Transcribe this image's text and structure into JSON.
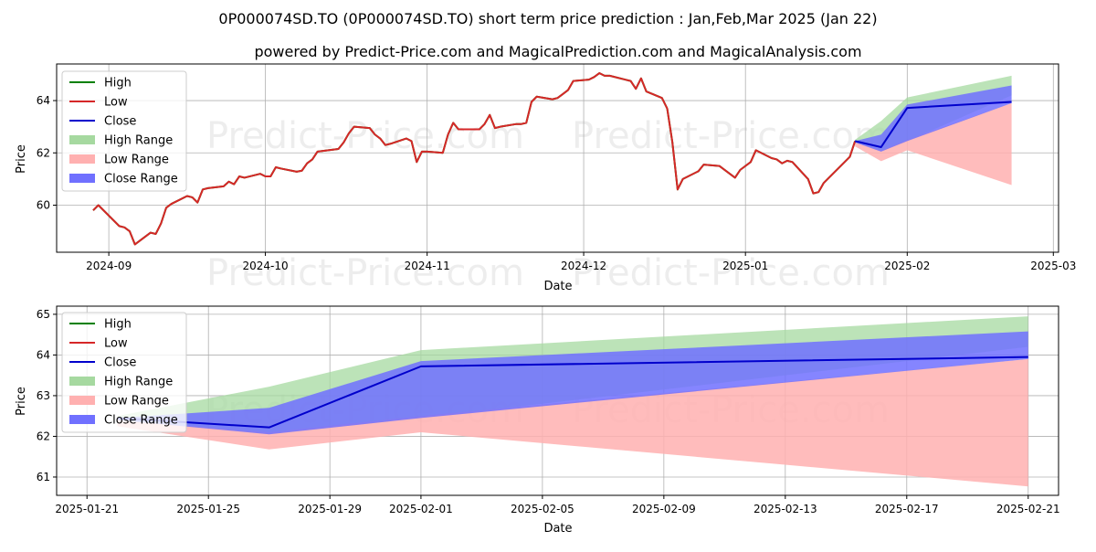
{
  "title": "0P000074SD.TO (0P000074SD.TO) short term price prediction : Jan,Feb,Mar 2025 (Jan 22)",
  "subtitle": "powered by Predict-Price.com and MagicalPrediction.com and MagicalAnalysis.com",
  "watermark": "Predict-Price.com",
  "colors": {
    "high": "#008000",
    "low": "#d62728",
    "close": "#0000cc",
    "high_range": "#a6d9a0",
    "low_range": "#ffb0b0",
    "close_range": "#7070ff"
  },
  "legend": [
    "High",
    "Low",
    "Close",
    "High Range",
    "Low Range",
    "Close Range"
  ],
  "chart_data": [
    {
      "type": "line",
      "xlabel": "Date",
      "ylabel": "Price",
      "xlim": [
        "2024-08-22",
        "2025-03-02"
      ],
      "ylim": [
        58.2,
        65.4
      ],
      "yticks": [
        60,
        62,
        64
      ],
      "xticks": [
        "2024-09-01",
        "2024-10-01",
        "2024-11-01",
        "2024-12-01",
        "2025-01-01",
        "2025-02-01",
        "2025-03-01"
      ],
      "xtick_labels": [
        "2024-09",
        "2024-10",
        "2024-11",
        "2024-12",
        "2025-01",
        "2025-02",
        "2025-03"
      ],
      "grid": true,
      "legend_position": "upper-left",
      "history": {
        "dates": [
          "2024-08-29",
          "2024-08-30",
          "2024-09-03",
          "2024-09-04",
          "2024-09-05",
          "2024-09-06",
          "2024-09-09",
          "2024-09-10",
          "2024-09-11",
          "2024-09-12",
          "2024-09-13",
          "2024-09-16",
          "2024-09-17",
          "2024-09-18",
          "2024-09-19",
          "2024-09-20",
          "2024-09-23",
          "2024-09-24",
          "2024-09-25",
          "2024-09-26",
          "2024-09-27",
          "2024-09-30",
          "2024-10-01",
          "2024-10-02",
          "2024-10-03",
          "2024-10-04",
          "2024-10-07",
          "2024-10-08",
          "2024-10-09",
          "2024-10-10",
          "2024-10-11",
          "2024-10-15",
          "2024-10-16",
          "2024-10-17",
          "2024-10-18",
          "2024-10-21",
          "2024-10-22",
          "2024-10-23",
          "2024-10-24",
          "2024-10-25",
          "2024-10-28",
          "2024-10-29",
          "2024-10-30",
          "2024-10-31",
          "2024-11-01",
          "2024-11-04",
          "2024-11-05",
          "2024-11-06",
          "2024-11-07",
          "2024-11-08",
          "2024-11-11",
          "2024-11-12",
          "2024-11-13",
          "2024-11-14",
          "2024-11-15",
          "2024-11-18",
          "2024-11-19",
          "2024-11-20",
          "2024-11-21",
          "2024-11-22",
          "2024-11-25",
          "2024-11-26",
          "2024-11-27",
          "2024-11-28",
          "2024-11-29",
          "2024-12-02",
          "2024-12-03",
          "2024-12-04",
          "2024-12-05",
          "2024-12-06",
          "2024-12-09",
          "2024-12-10",
          "2024-12-11",
          "2024-12-12",
          "2024-12-13",
          "2024-12-16",
          "2024-12-17",
          "2024-12-18",
          "2024-12-19",
          "2024-12-20",
          "2024-12-23",
          "2024-12-24",
          "2024-12-27",
          "2024-12-30",
          "2024-12-31",
          "2025-01-02",
          "2025-01-03",
          "2025-01-06",
          "2025-01-07",
          "2025-01-08",
          "2025-01-09",
          "2025-01-10",
          "2025-01-13",
          "2025-01-14",
          "2025-01-15",
          "2025-01-16",
          "2025-01-17",
          "2025-01-20",
          "2025-01-21",
          "2025-01-22"
        ],
        "low": [
          59.8,
          60.0,
          59.2,
          59.15,
          59.0,
          58.5,
          58.95,
          58.9,
          59.3,
          59.9,
          60.05,
          60.35,
          60.3,
          60.1,
          60.6,
          60.65,
          60.72,
          60.9,
          60.8,
          61.1,
          61.05,
          61.2,
          61.1,
          61.1,
          61.45,
          61.4,
          61.28,
          61.32,
          61.6,
          61.75,
          62.05,
          62.15,
          62.4,
          62.75,
          63.0,
          62.95,
          62.7,
          62.55,
          62.3,
          62.35,
          62.55,
          62.45,
          61.65,
          62.05,
          62.05,
          62.0,
          62.7,
          63.15,
          62.9,
          62.9,
          62.9,
          63.1,
          63.45,
          62.95,
          63.0,
          63.1,
          63.1,
          63.15,
          63.95,
          64.15,
          64.05,
          64.1,
          64.25,
          64.4,
          64.75,
          64.8,
          64.9,
          65.05,
          64.95,
          64.95,
          64.8,
          64.75,
          64.45,
          64.85,
          64.35,
          64.1,
          63.7,
          62.4,
          60.6,
          61.0,
          61.3,
          61.55,
          61.5,
          61.05,
          61.35,
          61.65,
          62.1,
          61.8,
          61.75,
          61.6,
          61.7,
          61.65,
          61.0,
          60.45,
          60.5,
          60.85,
          61.05,
          61.65,
          61.85,
          62.45
        ]
      }
    },
    {
      "type": "area",
      "xlabel": "Date",
      "ylabel": "Price",
      "xlim": [
        "2025-01-20",
        "2025-02-22"
      ],
      "ylim": [
        60.55,
        65.2
      ],
      "yticks": [
        61,
        62,
        63,
        64,
        65
      ],
      "xticks": [
        "2025-01-21",
        "2025-01-25",
        "2025-01-29",
        "2025-02-01",
        "2025-02-05",
        "2025-02-09",
        "2025-02-13",
        "2025-02-17",
        "2025-02-21"
      ],
      "grid": true,
      "legend_position": "upper-left",
      "forecast": {
        "dates": [
          "2025-01-22",
          "2025-01-27",
          "2025-02-01",
          "2025-02-21"
        ],
        "close": [
          62.45,
          62.22,
          63.72,
          63.95
        ],
        "high_range": {
          "upper": [
            62.5,
            63.22,
            64.12,
            64.95
          ],
          "lower": [
            62.4,
            62.05,
            62.45,
            64.2
          ]
        },
        "low_range": {
          "upper": [
            62.4,
            62.1,
            62.5,
            63.9
          ],
          "lower": [
            62.25,
            61.68,
            62.1,
            60.77
          ]
        },
        "close_range": {
          "upper": [
            62.45,
            62.7,
            63.85,
            64.58
          ],
          "lower": [
            62.4,
            62.05,
            62.45,
            63.9
          ]
        }
      }
    }
  ]
}
